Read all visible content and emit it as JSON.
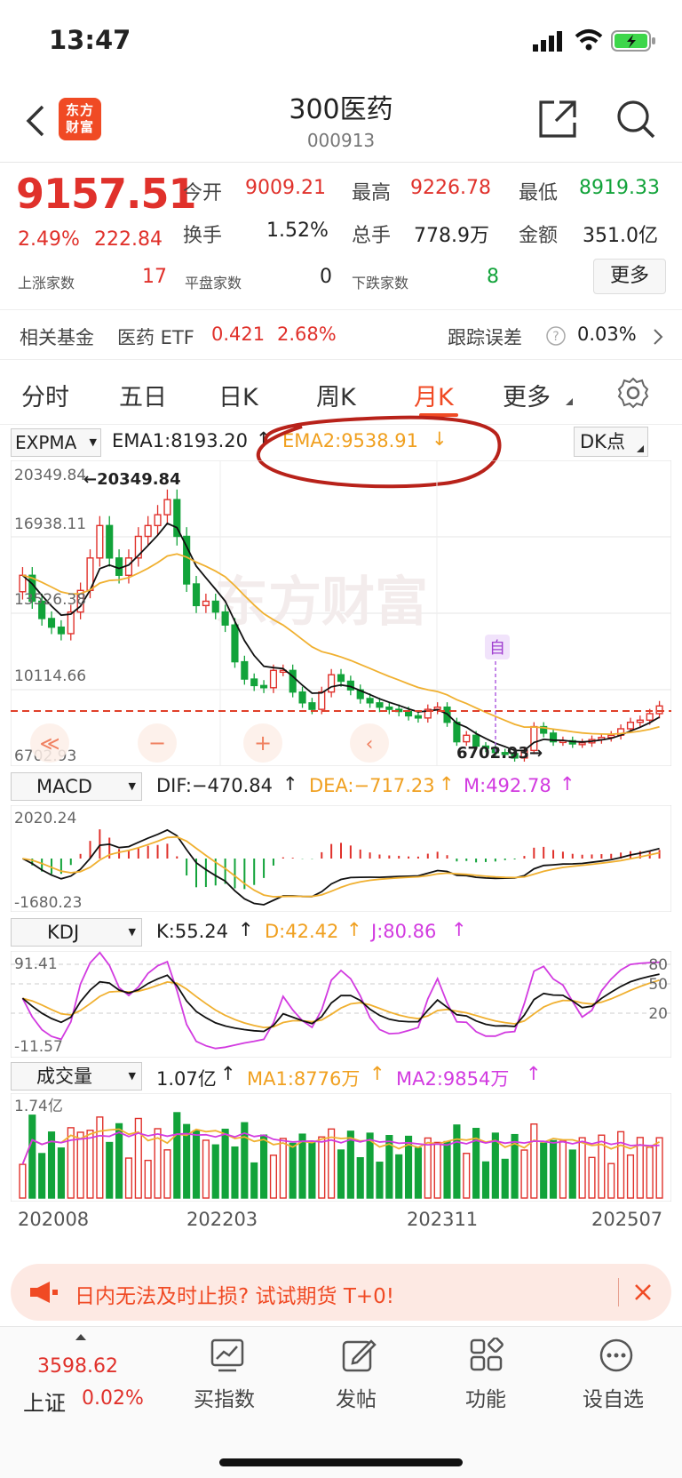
{
  "status": {
    "time": "13:47"
  },
  "header": {
    "logo": "东方财富",
    "title": "300医药",
    "code": "000913"
  },
  "quote": {
    "price": "9157.51",
    "change_pct": "2.49%",
    "change": "222.84",
    "open_label": "今开",
    "open": "9009.21",
    "high_label": "最高",
    "high": "9226.78",
    "low_label": "最低",
    "low": "8919.33",
    "turnover_label": "换手",
    "turnover": "1.52%",
    "volume_label": "总手",
    "volume": "778.9万",
    "amount_label": "金额",
    "amount": "351.0亿",
    "up_label": "上涨家数",
    "up": "17",
    "flat_label": "平盘家数",
    "flat": "0",
    "down_label": "下跌家数",
    "down": "8",
    "more_button": "更多"
  },
  "fund": {
    "label": "相关基金",
    "name": "医药 ETF",
    "price": "0.421",
    "pct": "2.68%",
    "tracking_label": "跟踪误差",
    "tracking": "0.03%"
  },
  "tabs": [
    {
      "label": "分时"
    },
    {
      "label": "五日"
    },
    {
      "label": "日K"
    },
    {
      "label": "周K"
    },
    {
      "label": "月K",
      "active": true
    },
    {
      "label": "更多"
    }
  ],
  "main_indicator": {
    "selector": "EXPMA",
    "ema1": "EMA1:8193.20",
    "ema2": "EMA2:9538.91",
    "dk": "DK点"
  },
  "macd": {
    "selector": "MACD",
    "dif": "DIF:−470.84",
    "dea": "DEA:−717.23",
    "m": "M:492.78",
    "top": "2020.24",
    "bottom": "-1680.23"
  },
  "kdj": {
    "selector": "KDJ",
    "k": "K:55.24",
    "d": "D:42.42",
    "j": "J:80.86",
    "top": "91.41",
    "bottom": "-11.57",
    "levels": [
      "80",
      "50",
      "20"
    ]
  },
  "vol": {
    "selector": "成交量",
    "value": "1.07亿",
    "ma1": "MA1:8776万",
    "ma2": "MA2:9854万",
    "top": "1.74亿"
  },
  "chart_data": {
    "type": "candlestick",
    "y_labels": [
      "20349.84",
      "16938.11",
      "13526.38",
      "10114.66",
      "6702.93"
    ],
    "ylim": [
      6702.93,
      20349.84
    ],
    "x_labels": [
      "202008",
      "202203",
      "202311",
      "202507"
    ],
    "high_annotation": "20349.84",
    "low_annotation": "6702.93",
    "marker": "自",
    "ref_line": 9157.51,
    "closes": [
      15200,
      14000,
      13200,
      12800,
      12500,
      13500,
      14500,
      16000,
      17500,
      16000,
      15200,
      16000,
      17000,
      17500,
      18000,
      18700,
      17000,
      14800,
      13800,
      14000,
      13500,
      12900,
      11200,
      10400,
      10100,
      10000,
      10800,
      10800,
      9800,
      9300,
      9000,
      9800,
      10600,
      10300,
      9900,
      9500,
      9300,
      9100,
      9000,
      8900,
      8700,
      8600,
      9000,
      9100,
      8400,
      7500,
      7800,
      7300,
      7200,
      7000,
      6950,
      6750,
      7100,
      8200,
      7900,
      7500,
      7550,
      7400,
      7450,
      7600,
      7700,
      7800,
      8100,
      8400,
      8500,
      8800,
      9157
    ]
  },
  "banner": {
    "text": "日内无法及时止损? 试试期货 T+0!"
  },
  "bottom_nav": {
    "index_value": "3598.62",
    "index_name": "上证",
    "index_pct": "0.02%",
    "items": [
      {
        "label": "买指数"
      },
      {
        "label": "发帖"
      },
      {
        "label": "功能"
      },
      {
        "label": "设自选"
      }
    ]
  }
}
